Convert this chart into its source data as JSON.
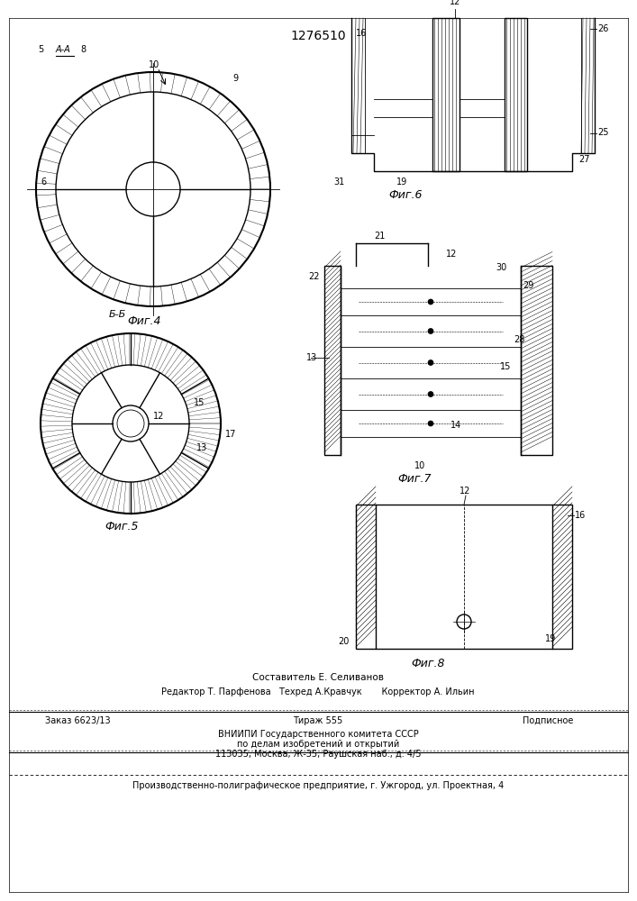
{
  "title_number": "1276510",
  "background_color": "#ffffff",
  "line_color": "#000000",
  "fig4_label": "Фиг.4",
  "fig5_label": "Фиг.5",
  "fig6_label": "Фиг.6",
  "fig7_label": "Фиг.7",
  "fig8_label": "Фиг.8",
  "section_aa": "А-А",
  "section_bb": "Б-Б",
  "bottom_line1": "Составитель Е. Селиванов",
  "bottom_line2": "Редактор Т. Парфенова   Техред А.Кравчук       Корректор А. Ильин",
  "bottom_line3": "Заказ 6623/13          Тираж 555               Подписное",
  "bottom_line4": "ВНИИПИ Государственного комитета СССР",
  "bottom_line5": "по делам изобретений и открытий",
  "bottom_line6": "113035, Москва, Ж-35, Раушская наб., д. 4/5",
  "bottom_line7": "Производственно-полиграфическое предприятие, г. Ужгород, ул. Проектная, 4",
  "font_size_small": 7,
  "font_size_medium": 8,
  "font_size_large": 9
}
